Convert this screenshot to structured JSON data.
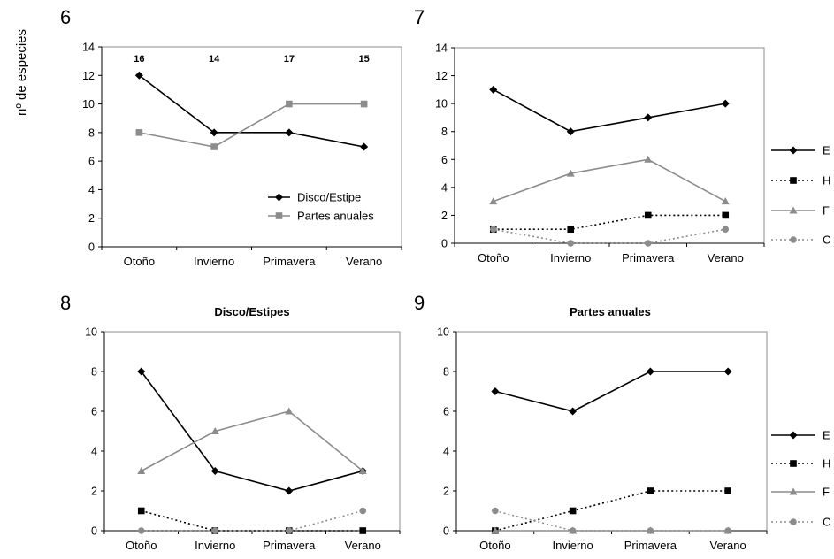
{
  "y_axis_label": "nº de especies",
  "chart_data": [
    {
      "panel": "6",
      "type": "line",
      "title": "",
      "categories": [
        "Otoño",
        "Invierno",
        "Primavera",
        "Verano"
      ],
      "ylim": [
        0,
        14
      ],
      "yticks": [
        0,
        2,
        4,
        6,
        8,
        10,
        12,
        14
      ],
      "annotations": [
        "16",
        "14",
        "17",
        "15"
      ],
      "legend_position": "bottom-right-inside",
      "series": [
        {
          "name": "Disco/Estipe",
          "values": [
            12,
            8,
            8,
            7
          ],
          "color": "#000000",
          "marker": "diamond",
          "dash": "solid"
        },
        {
          "name": "Partes anuales",
          "values": [
            8,
            7,
            10,
            10
          ],
          "color": "#8c8c8c",
          "marker": "square",
          "dash": "solid"
        }
      ]
    },
    {
      "panel": "7",
      "type": "line",
      "title": "",
      "categories": [
        "Otoño",
        "Invierno",
        "Primavera",
        "Verano"
      ],
      "ylim": [
        0,
        14
      ],
      "yticks": [
        0,
        2,
        4,
        6,
        8,
        10,
        12,
        14
      ],
      "legend_position": "right-outside",
      "series": [
        {
          "name": "E",
          "values": [
            11,
            8,
            9,
            10
          ],
          "color": "#000000",
          "marker": "diamond",
          "dash": "solid"
        },
        {
          "name": "H",
          "values": [
            1,
            1,
            2,
            2
          ],
          "color": "#000000",
          "marker": "square",
          "dash": "dotted"
        },
        {
          "name": "F",
          "values": [
            3,
            5,
            6,
            3
          ],
          "color": "#8c8c8c",
          "marker": "triangle",
          "dash": "solid"
        },
        {
          "name": "C",
          "values": [
            1,
            0,
            0,
            1
          ],
          "color": "#8c8c8c",
          "marker": "circle",
          "dash": "dotted"
        }
      ]
    },
    {
      "panel": "8",
      "type": "line",
      "title": "Disco/Estipes",
      "categories": [
        "Otoño",
        "Invierno",
        "Primavera",
        "Verano"
      ],
      "ylim": [
        0,
        10
      ],
      "yticks": [
        0,
        2,
        4,
        6,
        8,
        10
      ],
      "series": [
        {
          "name": "E",
          "values": [
            8,
            3,
            2,
            3
          ],
          "color": "#000000",
          "marker": "diamond",
          "dash": "solid"
        },
        {
          "name": "H",
          "values": [
            1,
            0,
            0,
            0
          ],
          "color": "#000000",
          "marker": "square",
          "dash": "dotted"
        },
        {
          "name": "F",
          "values": [
            3,
            5,
            6,
            3
          ],
          "color": "#8c8c8c",
          "marker": "triangle",
          "dash": "solid"
        },
        {
          "name": "C",
          "values": [
            0,
            0,
            0,
            1
          ],
          "color": "#8c8c8c",
          "marker": "circle",
          "dash": "dotted"
        }
      ]
    },
    {
      "panel": "9",
      "type": "line",
      "title": "Partes anuales",
      "categories": [
        "Otoño",
        "Invierno",
        "Primavera",
        "Verano"
      ],
      "ylim": [
        0,
        10
      ],
      "yticks": [
        0,
        2,
        4,
        6,
        8,
        10
      ],
      "legend_position": "right-outside",
      "series": [
        {
          "name": "E",
          "values": [
            7,
            6,
            8,
            8
          ],
          "color": "#000000",
          "marker": "diamond",
          "dash": "solid"
        },
        {
          "name": "H",
          "values": [
            0,
            1,
            2,
            2
          ],
          "color": "#000000",
          "marker": "square",
          "dash": "dotted"
        },
        {
          "name": "F",
          "values": [
            0,
            0,
            0,
            0
          ],
          "color": "#8c8c8c",
          "marker": "triangle",
          "dash": "solid"
        },
        {
          "name": "C",
          "values": [
            1,
            0,
            0,
            0
          ],
          "color": "#8c8c8c",
          "marker": "circle",
          "dash": "dotted"
        }
      ]
    }
  ]
}
